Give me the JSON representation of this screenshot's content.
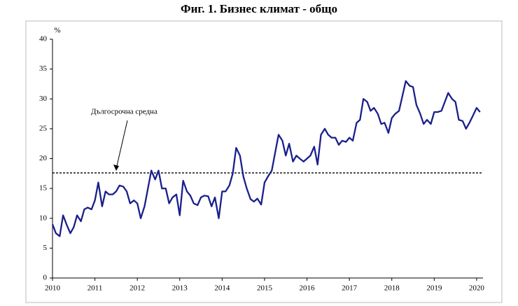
{
  "chart_data": {
    "type": "line",
    "title": "Фиг. 1. Бизнес климат - общо",
    "y_unit": "%",
    "color": "#1a1f8c",
    "x": [
      2010,
      2010.08,
      2010.17,
      2010.25,
      2010.33,
      2010.42,
      2010.5,
      2010.58,
      2010.67,
      2010.75,
      2010.83,
      2010.92,
      2011,
      2011.08,
      2011.17,
      2011.25,
      2011.33,
      2011.42,
      2011.5,
      2011.58,
      2011.67,
      2011.75,
      2011.83,
      2011.92,
      2012,
      2012.08,
      2012.17,
      2012.25,
      2012.33,
      2012.42,
      2012.5,
      2012.58,
      2012.67,
      2012.75,
      2012.83,
      2012.92,
      2013,
      2013.08,
      2013.17,
      2013.25,
      2013.33,
      2013.42,
      2013.5,
      2013.58,
      2013.67,
      2013.75,
      2013.83,
      2013.92,
      2014,
      2014.08,
      2014.17,
      2014.25,
      2014.33,
      2014.42,
      2014.5,
      2014.58,
      2014.67,
      2014.75,
      2014.83,
      2014.92,
      2015,
      2015.08,
      2015.17,
      2015.25,
      2015.33,
      2015.42,
      2015.5,
      2015.58,
      2015.67,
      2015.75,
      2015.83,
      2015.92,
      2016,
      2016.08,
      2016.17,
      2016.25,
      2016.33,
      2016.42,
      2016.5,
      2016.58,
      2016.67,
      2016.75,
      2016.83,
      2016.92,
      2017,
      2017.08,
      2017.17,
      2017.25,
      2017.33,
      2017.42,
      2017.5,
      2017.58,
      2017.67,
      2017.75,
      2017.83,
      2017.92,
      2018,
      2018.08,
      2018.17,
      2018.25,
      2018.33,
      2018.42,
      2018.5,
      2018.58,
      2018.67,
      2018.75,
      2018.83,
      2018.92,
      2019,
      2019.08,
      2019.17,
      2019.25,
      2019.33,
      2019.42,
      2019.5,
      2019.58,
      2019.67,
      2019.75,
      2019.83,
      2019.92,
      2020,
      2020.08
    ],
    "values": [
      9,
      7.5,
      7,
      10.5,
      9,
      7.5,
      8.5,
      10.5,
      9.5,
      11.5,
      11.8,
      11.5,
      13,
      16,
      12,
      14.5,
      14,
      14,
      14.5,
      15.5,
      15.3,
      14.5,
      12.5,
      13,
      12.5,
      10,
      12,
      15,
      18,
      16.5,
      18,
      15,
      15,
      12.5,
      13.5,
      14,
      10.5,
      16.3,
      14.5,
      13.8,
      12.5,
      12.2,
      13.5,
      13.8,
      13.7,
      12,
      13.5,
      10,
      14.5,
      14.5,
      15.5,
      17.5,
      21.8,
      20.5,
      17,
      15,
      13.2,
      12.8,
      13.3,
      12.3,
      16,
      17,
      18,
      21,
      24,
      23,
      20.5,
      22.5,
      19.5,
      20.5,
      20,
      19.5,
      20,
      20.5,
      22,
      19,
      24,
      25,
      24,
      23.5,
      23.5,
      22.3,
      23,
      22.8,
      23.5,
      23,
      26,
      26.5,
      30,
      29.5,
      28,
      28.5,
      27.5,
      25.8,
      26,
      24.3,
      26.8,
      27.5,
      28,
      30.5,
      33,
      32.2,
      32,
      29,
      27.5,
      25.8,
      26.5,
      25.8,
      27.8,
      27.8,
      28,
      29.5,
      31,
      30,
      29.5,
      26.5,
      26.3,
      25,
      26,
      27.3,
      28.5,
      27.8
    ],
    "reference_line": {
      "value": 17.6,
      "label": "Дългосрочна средна"
    },
    "xlim": [
      2010,
      2020.15
    ],
    "ylim": [
      0,
      40
    ],
    "xticks": [
      2010,
      2011,
      2012,
      2013,
      2014,
      2015,
      2016,
      2017,
      2018,
      2019,
      2020
    ],
    "yticks": [
      0,
      5,
      10,
      15,
      20,
      25,
      30,
      35,
      40
    ],
    "grid": false
  }
}
